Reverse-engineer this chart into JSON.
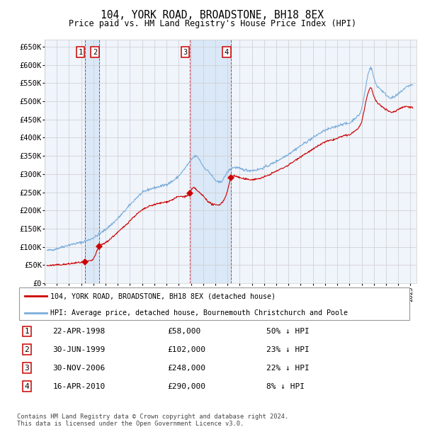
{
  "title": "104, YORK ROAD, BROADSTONE, BH18 8EX",
  "subtitle": "Price paid vs. HM Land Registry's House Price Index (HPI)",
  "ylim": [
    0,
    670000
  ],
  "yticks": [
    0,
    50000,
    100000,
    150000,
    200000,
    250000,
    300000,
    350000,
    400000,
    450000,
    500000,
    550000,
    600000,
    650000
  ],
  "ytick_labels": [
    "£0",
    "£50K",
    "£100K",
    "£150K",
    "£200K",
    "£250K",
    "£300K",
    "£350K",
    "£400K",
    "£450K",
    "£500K",
    "£550K",
    "£600K",
    "£650K"
  ],
  "sale_prices": [
    58000,
    102000,
    248000,
    290000
  ],
  "sale_labels": [
    "1",
    "2",
    "3",
    "4"
  ],
  "sale_date_strs": [
    "22-APR-1998",
    "30-JUN-1999",
    "30-NOV-2006",
    "16-APR-2010"
  ],
  "sale_price_strs": [
    "£58,000",
    "£102,000",
    "£248,000",
    "£290,000"
  ],
  "sale_hpi_pct": [
    "50% ↓ HPI",
    "23% ↓ HPI",
    "22% ↓ HPI",
    "8% ↓ HPI"
  ],
  "red_line_color": "#cc0000",
  "blue_line_color": "#7aaddb",
  "grid_color": "#cccccc",
  "shade_color": "#cce0f5",
  "background_color": "#ffffff",
  "legend_red_label": "104, YORK ROAD, BROADSTONE, BH18 8EX (detached house)",
  "legend_blue_label": "HPI: Average price, detached house, Bournemouth Christchurch and Poole",
  "footer": "Contains HM Land Registry data © Crown copyright and database right 2024.\nThis data is licensed under the Open Government Licence v3.0.",
  "xstart": 1995.2,
  "xend": 2025.5,
  "hpi_anchors_x": [
    1995.2,
    1996.0,
    1997.0,
    1998.0,
    1999.0,
    2000.0,
    2001.0,
    2002.0,
    2003.0,
    2004.0,
    2005.0,
    2006.0,
    2007.0,
    2007.5,
    2008.0,
    2008.5,
    2009.0,
    2009.5,
    2010.0,
    2010.5,
    2011.0,
    2012.0,
    2013.0,
    2014.0,
    2015.0,
    2016.0,
    2017.0,
    2018.0,
    2019.0,
    2019.5,
    2020.0,
    2020.5,
    2021.0,
    2021.5,
    2021.8,
    2022.0,
    2022.5,
    2023.0,
    2023.5,
    2024.0,
    2024.5,
    2025.2
  ],
  "hpi_anchors_y": [
    90000,
    95000,
    105000,
    112000,
    125000,
    148000,
    178000,
    215000,
    248000,
    262000,
    272000,
    295000,
    338000,
    348000,
    322000,
    305000,
    283000,
    280000,
    305000,
    318000,
    315000,
    310000,
    318000,
    335000,
    355000,
    378000,
    400000,
    420000,
    432000,
    438000,
    440000,
    455000,
    480000,
    570000,
    590000,
    565000,
    535000,
    518000,
    510000,
    520000,
    535000,
    545000
  ],
  "red_anchors_x": [
    1995.2,
    1996.0,
    1997.0,
    1998.0,
    1998.32,
    1998.5,
    1999.0,
    1999.5,
    1999.8,
    2000.5,
    2001.5,
    2002.5,
    2003.5,
    2004.5,
    2005.5,
    2006.0,
    2006.9,
    2007.2,
    2007.5,
    2008.0,
    2008.5,
    2009.0,
    2009.5,
    2010.0,
    2010.3,
    2010.6,
    2011.0,
    2012.0,
    2013.0,
    2014.0,
    2015.0,
    2016.0,
    2017.0,
    2018.0,
    2019.0,
    2019.5,
    2020.0,
    2020.5,
    2021.0,
    2021.5,
    2021.8,
    2022.0,
    2022.5,
    2023.0,
    2023.5,
    2024.0,
    2024.5,
    2025.2
  ],
  "red_anchors_y": [
    48000,
    50000,
    53000,
    57000,
    58000,
    60000,
    67000,
    102000,
    108000,
    125000,
    155000,
    188000,
    210000,
    220000,
    230000,
    238000,
    248000,
    262000,
    255000,
    240000,
    222000,
    215000,
    220000,
    255000,
    290000,
    295000,
    290000,
    285000,
    292000,
    308000,
    325000,
    348000,
    368000,
    388000,
    398000,
    405000,
    408000,
    420000,
    445000,
    520000,
    535000,
    515000,
    490000,
    478000,
    470000,
    478000,
    485000,
    482000
  ]
}
